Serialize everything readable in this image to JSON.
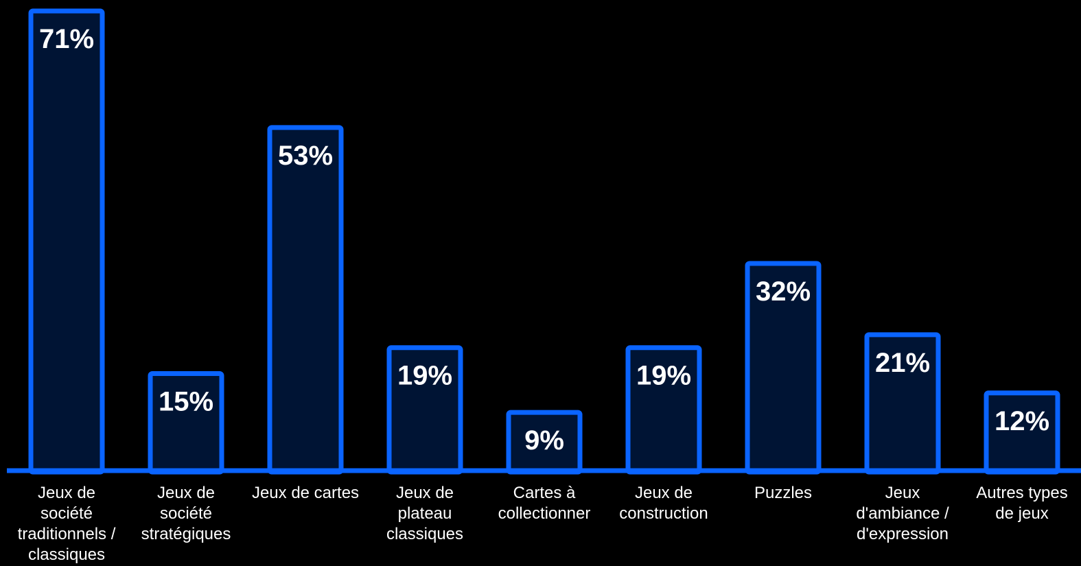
{
  "chart_data": {
    "type": "bar",
    "categories": [
      "Jeux de société traditionnels / classiques",
      "Jeux de société stratégiques",
      "Jeux de cartes",
      "Jeux de plateau classiques",
      "Cartes à collectionner",
      "Jeux de construction",
      "Puzzles",
      "Jeux d'ambiance / d'expression",
      "Autres types de jeux"
    ],
    "category_lines": [
      [
        "Jeux de",
        "société",
        "traditionnels /",
        "classiques"
      ],
      [
        "Jeux de",
        "société",
        "stratégiques"
      ],
      [
        "Jeux de cartes"
      ],
      [
        "Jeux de",
        "plateau",
        "classiques"
      ],
      [
        "Cartes à",
        "collectionner"
      ],
      [
        "Jeux de",
        "construction"
      ],
      [
        "Puzzles"
      ],
      [
        "Jeux",
        "d'ambiance /",
        "d'expression"
      ],
      [
        "Autres types",
        "de jeux"
      ]
    ],
    "values": [
      71,
      15,
      53,
      19,
      9,
      19,
      32,
      21,
      12
    ],
    "value_labels": [
      "71%",
      "15%",
      "53%",
      "19%",
      "9%",
      "19%",
      "32%",
      "21%",
      "12%"
    ],
    "title": "",
    "xlabel": "",
    "ylabel": "",
    "ylim": [
      0,
      71
    ],
    "grid": false,
    "legend": "none",
    "colors": {
      "background": "#000000",
      "bar_fill": "#001434",
      "bar_stroke": "#0a64ff",
      "axis": "#0a64ff",
      "text": "#ffffff"
    }
  }
}
